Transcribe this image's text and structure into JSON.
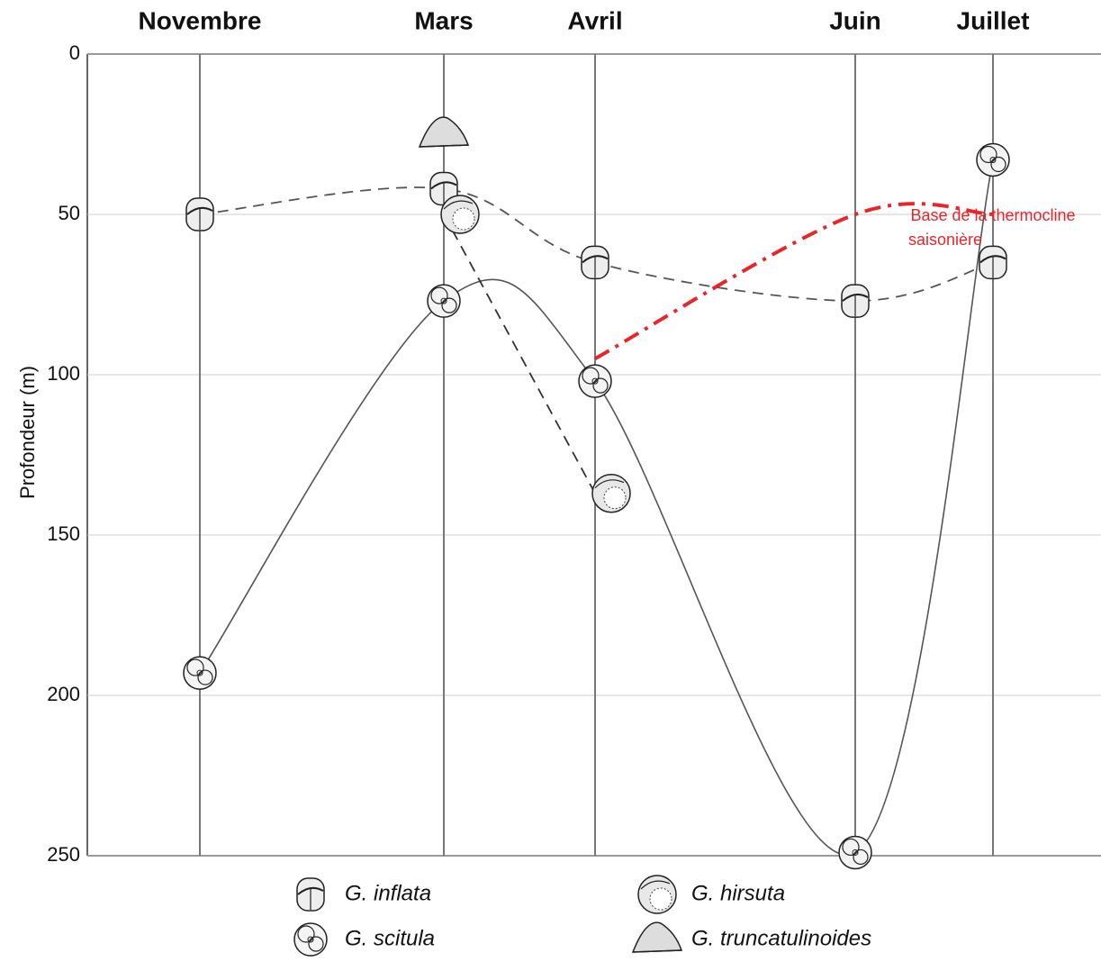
{
  "chart_data": {
    "type": "line",
    "y_label": "Profondeur (m)",
    "categories": [
      "Novembre",
      "Mars",
      "Avril",
      "Juin",
      "Juillet"
    ],
    "ylim": [
      0,
      250
    ],
    "yticks": [
      0,
      50,
      100,
      150,
      200,
      250
    ],
    "y_inverted": true,
    "grid": true,
    "series": [
      {
        "name": "G. inflata",
        "color": "#555555",
        "line_style": "dashed",
        "values": [
          50,
          42,
          65,
          77,
          65
        ]
      },
      {
        "name": "G. scitula",
        "color": "#555555",
        "line_style": "solid",
        "values": [
          193,
          77,
          102,
          249,
          33
        ]
      },
      {
        "name": "G. hirsuta",
        "color": "#333333",
        "line_style": "dashed",
        "values": [
          null,
          50,
          137,
          null,
          null
        ]
      },
      {
        "name": "G. truncatulinoides",
        "color": "#111111",
        "line_style": "dotted",
        "values": [
          null,
          25,
          null,
          null,
          null
        ]
      },
      {
        "name": "Base de la thermocline saisonière",
        "color": "#e8262a",
        "line_style": "dashdot",
        "legend": false,
        "values": [
          null,
          null,
          95,
          50,
          50
        ]
      }
    ]
  }
}
